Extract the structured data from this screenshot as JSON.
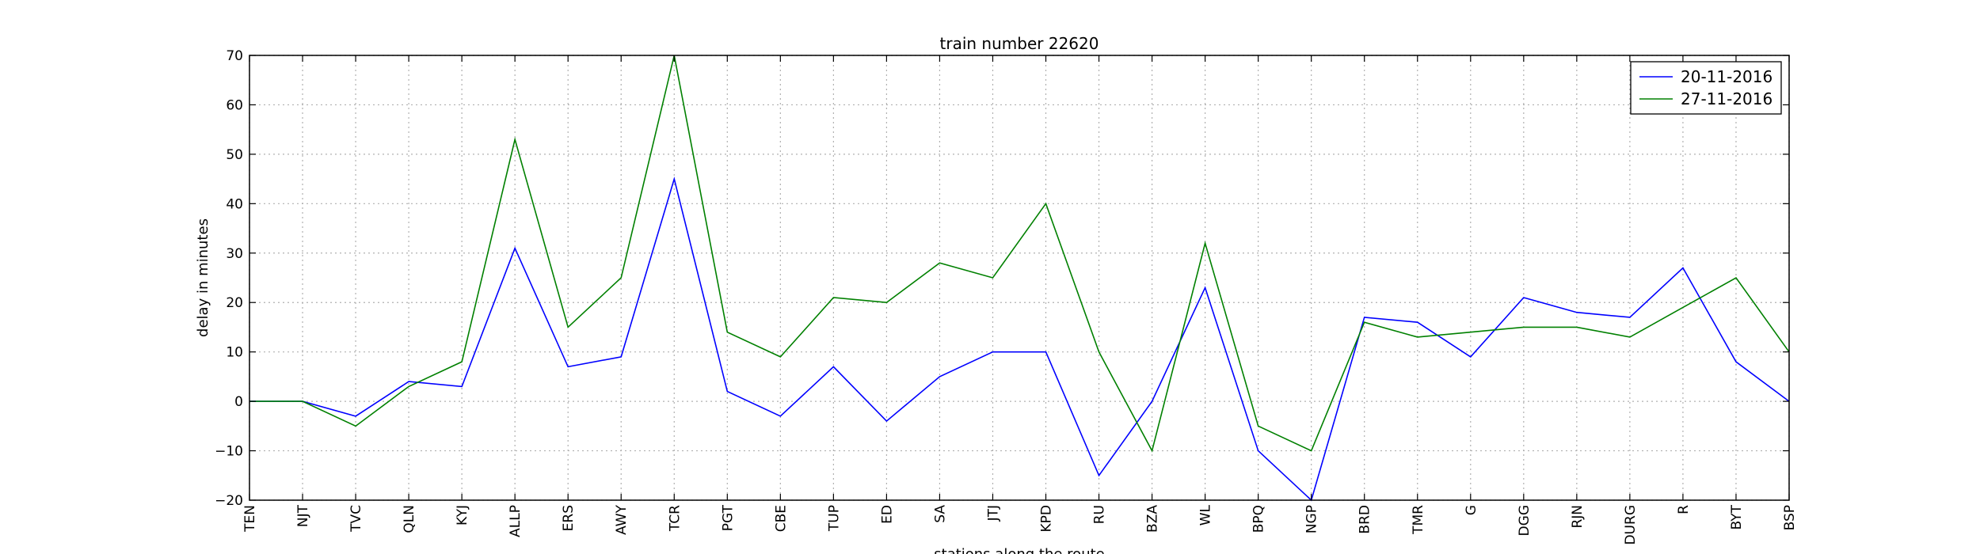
{
  "chart_data": {
    "type": "line",
    "title": "train number 22620",
    "xlabel": "stations along the route",
    "ylabel": "delay in minutes",
    "ylim": [
      -20,
      70
    ],
    "yticks": [
      -20,
      -10,
      0,
      10,
      20,
      30,
      40,
      50,
      60,
      70
    ],
    "grid": true,
    "legend_position": "top-right",
    "categories": [
      "TEN",
      "NJT",
      "TVC",
      "QLN",
      "KYJ",
      "ALLP",
      "ERS",
      "AWY",
      "TCR",
      "PGT",
      "CBE",
      "TUP",
      "ED",
      "SA",
      "JTJ",
      "KPD",
      "RU",
      "BZA",
      "WL",
      "BPQ",
      "NGP",
      "BRD",
      "TMR",
      "G",
      "DGG",
      "RJN",
      "DURG",
      "R",
      "BYT",
      "BSP"
    ],
    "series": [
      {
        "name": "20-11-2016",
        "color": "#0000ff",
        "values": [
          0,
          0,
          -3,
          4,
          3,
          31,
          7,
          9,
          45,
          2,
          -3,
          7,
          -4,
          5,
          10,
          10,
          -15,
          0,
          23,
          -10,
          -20,
          17,
          16,
          9,
          21,
          18,
          17,
          27,
          8,
          0
        ]
      },
      {
        "name": "27-11-2016",
        "color": "#008000",
        "values": [
          0,
          0,
          -5,
          3,
          8,
          53,
          15,
          25,
          70,
          14,
          9,
          21,
          20,
          28,
          25,
          40,
          10,
          -10,
          32,
          -5,
          -10,
          16,
          13,
          14,
          15,
          15,
          13,
          19,
          25,
          10
        ]
      }
    ]
  }
}
